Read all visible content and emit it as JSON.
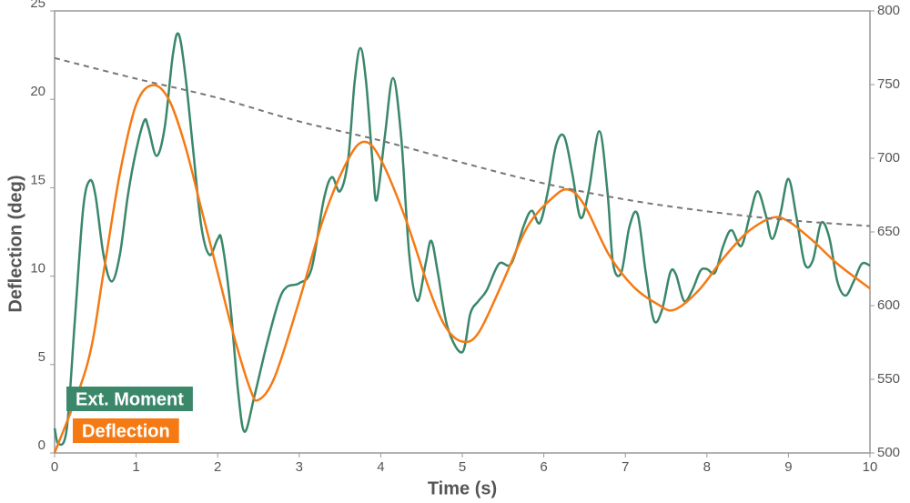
{
  "chart_data": {
    "type": "line",
    "xlabel": "Time (s)",
    "ylabel": "Deflection (deg)",
    "xlim": [
      0,
      10
    ],
    "xticks": [
      0,
      1,
      2,
      3,
      4,
      5,
      6,
      7,
      8,
      9,
      10
    ],
    "ylim": [
      0,
      25
    ],
    "yticks": [
      0,
      5,
      10,
      15,
      20,
      25
    ],
    "y2lim": [
      500,
      800
    ],
    "y2ticks": [
      500,
      550,
      600,
      650,
      700,
      750,
      800
    ],
    "series": [
      {
        "name": "Ext. Moment",
        "color": "#3a876a",
        "x": [
          0,
          0.05,
          0.15,
          0.25,
          0.35,
          0.43,
          0.5,
          0.6,
          0.7,
          0.8,
          0.9,
          1.0,
          1.1,
          1.15,
          1.25,
          1.35,
          1.45,
          1.52,
          1.6,
          1.7,
          1.8,
          1.9,
          2.0,
          2.05,
          2.15,
          2.25,
          2.33,
          2.45,
          2.6,
          2.75,
          2.85,
          3.0,
          3.15,
          3.3,
          3.4,
          3.5,
          3.6,
          3.68,
          3.75,
          3.82,
          3.9,
          3.95,
          4.05,
          4.15,
          4.25,
          4.35,
          4.45,
          4.55,
          4.62,
          4.7,
          4.82,
          5.0,
          5.1,
          5.2,
          5.3,
          5.45,
          5.6,
          5.75,
          5.85,
          5.95,
          6.05,
          6.15,
          6.25,
          6.35,
          6.45,
          6.55,
          6.68,
          6.78,
          6.85,
          6.95,
          7.05,
          7.15,
          7.25,
          7.35,
          7.45,
          7.55,
          7.62,
          7.72,
          7.82,
          7.92,
          8.0,
          8.1,
          8.2,
          8.3,
          8.42,
          8.52,
          8.62,
          8.72,
          8.8,
          8.9,
          9.0,
          9.1,
          9.2,
          9.3,
          9.4,
          9.5,
          9.6,
          9.7,
          9.8,
          9.9,
          10
        ],
        "values": [
          1.4,
          0.5,
          1.4,
          7.6,
          13.8,
          15.4,
          14.6,
          11.2,
          9.7,
          11.2,
          14.6,
          17.1,
          18.8,
          18.4,
          16.8,
          18.4,
          22.5,
          23.7,
          21.5,
          17.1,
          12.8,
          11.2,
          12.1,
          12.0,
          8.6,
          3.5,
          1.2,
          3.2,
          6.1,
          8.6,
          9.4,
          9.6,
          10.4,
          14.3,
          15.6,
          14.8,
          16.6,
          21.0,
          22.9,
          21.0,
          16.4,
          14.3,
          17.9,
          21.2,
          17.9,
          11.2,
          8.6,
          10.7,
          12.0,
          10.2,
          7.1,
          5.7,
          7.9,
          8.6,
          9.2,
          10.7,
          10.7,
          12.8,
          13.7,
          13.0,
          14.8,
          17.4,
          17.9,
          15.8,
          13.3,
          14.8,
          18.2,
          14.8,
          10.7,
          10.2,
          12.8,
          13.5,
          10.2,
          7.5,
          8.1,
          10.2,
          10.1,
          8.6,
          9.2,
          10.3,
          10.4,
          10.2,
          11.7,
          12.6,
          11.7,
          13.3,
          14.8,
          13.5,
          12.1,
          13.5,
          15.5,
          13.3,
          10.7,
          10.9,
          13.0,
          12.2,
          9.7,
          8.9,
          9.7,
          10.7,
          10.6
        ]
      },
      {
        "name": "Deflection",
        "color": "#f57a14",
        "x": [
          0,
          0.4,
          0.6,
          0.8,
          1.0,
          1.2,
          1.4,
          1.6,
          1.8,
          2.0,
          2.2,
          2.4,
          2.5,
          2.7,
          3.0,
          3.3,
          3.6,
          3.8,
          4.0,
          4.3,
          4.6,
          4.8,
          5.0,
          5.2,
          5.5,
          5.8,
          6.1,
          6.3,
          6.5,
          6.8,
          7.1,
          7.4,
          7.6,
          7.9,
          8.2,
          8.5,
          8.8,
          9.0,
          9.3,
          9.6,
          10
        ],
        "values": [
          0,
          5.0,
          10.2,
          15.8,
          19.7,
          20.8,
          20.0,
          17.4,
          13.8,
          10.2,
          6.6,
          3.6,
          3.0,
          4.3,
          8.6,
          13.3,
          16.6,
          17.6,
          16.6,
          13.3,
          9.2,
          7.1,
          6.3,
          6.8,
          9.7,
          12.8,
          14.4,
          14.9,
          14.0,
          11.2,
          9.4,
          8.4,
          8.1,
          9.2,
          11.0,
          12.5,
          13.3,
          13.1,
          12.0,
          10.7,
          9.3
        ]
      },
      {
        "color": "#777777",
        "axis": "y2",
        "dashed": true,
        "x": [
          0,
          1,
          2,
          3,
          4,
          5,
          6,
          7,
          8,
          9,
          10
        ],
        "values": [
          768,
          754,
          741,
          725,
          712,
          697,
          683,
          672,
          664,
          658,
          654
        ]
      }
    ]
  }
}
